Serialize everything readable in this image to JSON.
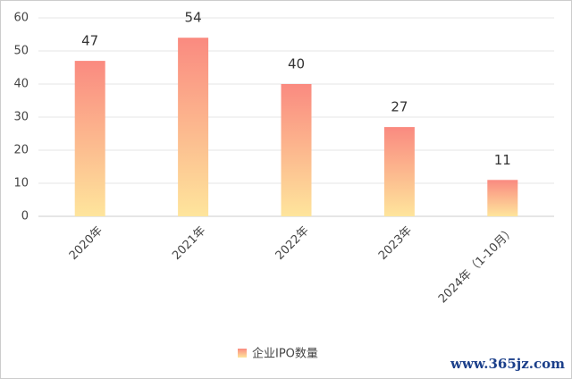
{
  "chart_data": {
    "type": "bar",
    "categories": [
      "2020年",
      "2021年",
      "2022年",
      "2023年",
      "2024年（1-10月）"
    ],
    "series": [
      {
        "name": "企业IPO数量",
        "color": [
          "#fa8a80",
          "#fee59c"
        ],
        "values": [
          47,
          54,
          40,
          27,
          11
        ]
      }
    ],
    "ylim": [
      0,
      60
    ],
    "yticks": [
      0,
      10,
      20,
      30,
      40,
      50,
      60
    ],
    "grid": true,
    "legend": "bottom",
    "watermark": "www.365jz.com"
  }
}
